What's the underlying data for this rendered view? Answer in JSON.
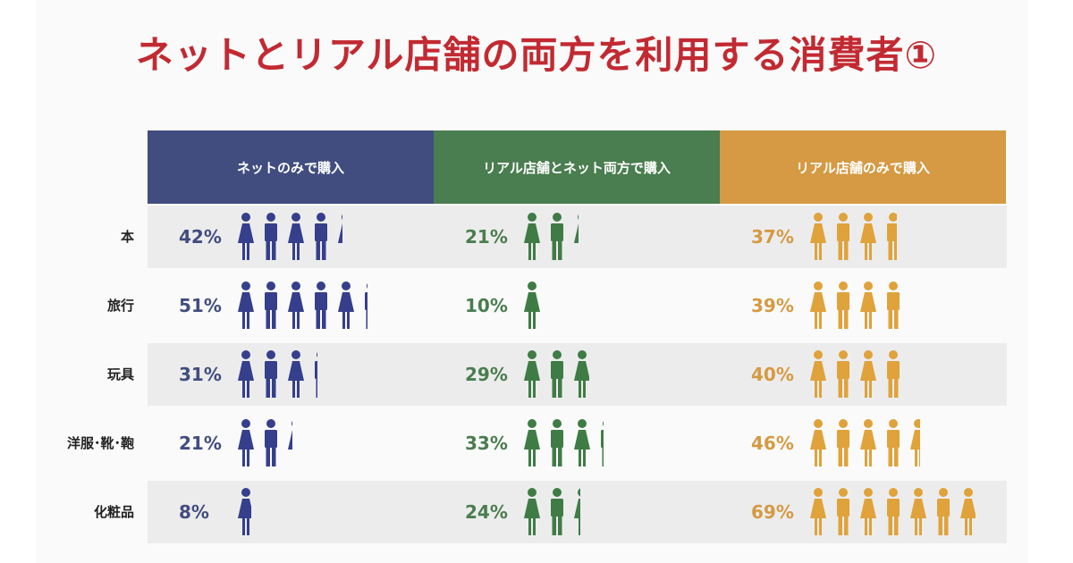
{
  "chart_data": {
    "type": "table",
    "title": "ネットとリアル店舗の両方を利用する消費者①",
    "columns": [
      {
        "label": "ネットのみで購入",
        "color": "#414d7f"
      },
      {
        "label": "リアル店舗とネット両方で購入",
        "color": "#4a7d4f"
      },
      {
        "label": "リアル店舗のみで購入",
        "color": "#d59a43"
      }
    ],
    "icon_colors": [
      "#353f8c",
      "#3f7c45",
      "#e0a23b"
    ],
    "rows": [
      {
        "category": "本",
        "values": [
          42,
          21,
          37
        ],
        "labels": [
          "42%",
          "21%",
          "37%"
        ]
      },
      {
        "category": "旅行",
        "values": [
          51,
          10,
          39
        ],
        "labels": [
          "51%",
          "10%",
          "39%"
        ]
      },
      {
        "category": "玩具",
        "values": [
          31,
          29,
          40
        ],
        "labels": [
          "31%",
          "29%",
          "40%"
        ]
      },
      {
        "category": "洋服･靴･鞄",
        "values": [
          21,
          33,
          46
        ],
        "labels": [
          "21%",
          "33%",
          "46%"
        ]
      },
      {
        "category": "化粧品",
        "values": [
          8,
          24,
          69
        ],
        "labels": [
          "8%",
          "24%",
          "69%"
        ]
      }
    ],
    "icon_unit": 10
  }
}
